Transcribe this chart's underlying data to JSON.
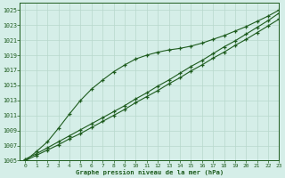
{
  "title": "Graphe pression niveau de la mer (hPa)",
  "background_color": "#d5eee8",
  "grid_color": "#b8d8cc",
  "line_color": "#1e5c1e",
  "xlim": [
    -0.5,
    23
  ],
  "ylim": [
    1005,
    1026
  ],
  "yticks": [
    1005,
    1007,
    1009,
    1011,
    1013,
    1015,
    1017,
    1019,
    1021,
    1023,
    1025
  ],
  "xticks": [
    0,
    1,
    2,
    3,
    4,
    5,
    6,
    7,
    8,
    9,
    10,
    11,
    12,
    13,
    14,
    15,
    16,
    17,
    18,
    19,
    20,
    21,
    22,
    23
  ],
  "x": [
    0,
    1,
    2,
    3,
    4,
    5,
    6,
    7,
    8,
    9,
    10,
    11,
    12,
    13,
    14,
    15,
    16,
    17,
    18,
    19,
    20,
    21,
    22,
    23
  ],
  "y_straight1": [
    1005.0,
    1005.7,
    1006.4,
    1007.1,
    1007.9,
    1008.6,
    1009.4,
    1010.2,
    1011.0,
    1011.8,
    1012.7,
    1013.5,
    1014.3,
    1015.2,
    1016.0,
    1016.9,
    1017.7,
    1018.6,
    1019.4,
    1020.3,
    1021.1,
    1022.0,
    1022.9,
    1023.8
  ],
  "y_straight2": [
    1005.2,
    1005.9,
    1006.7,
    1007.5,
    1008.3,
    1009.1,
    1009.9,
    1010.7,
    1011.5,
    1012.3,
    1013.2,
    1014.0,
    1014.9,
    1015.7,
    1016.6,
    1017.5,
    1018.3,
    1019.2,
    1020.1,
    1020.9,
    1021.8,
    1022.7,
    1023.6,
    1024.6
  ],
  "y_curved": [
    1005.0,
    1006.2,
    1007.5,
    1009.3,
    1011.2,
    1013.0,
    1014.5,
    1015.7,
    1016.8,
    1017.7,
    1018.5,
    1019.0,
    1019.4,
    1019.7,
    1019.9,
    1020.2,
    1020.6,
    1021.1,
    1021.6,
    1022.2,
    1022.8,
    1023.5,
    1024.2,
    1025.0
  ]
}
